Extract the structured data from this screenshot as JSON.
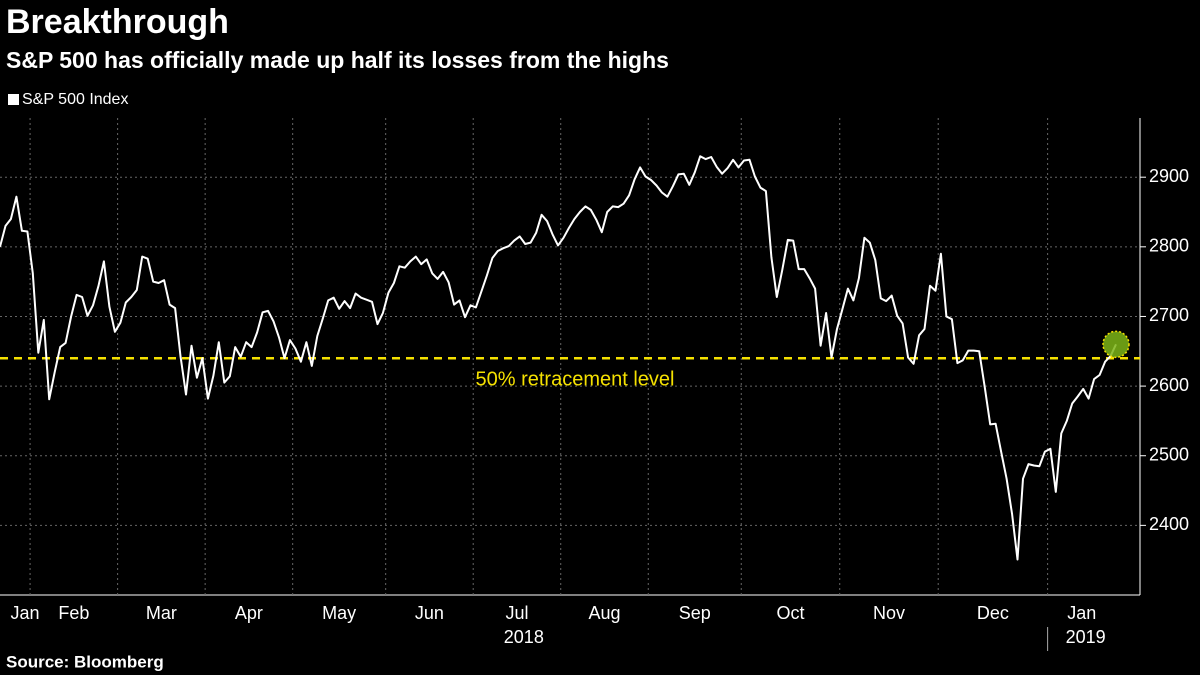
{
  "chart_data": {
    "type": "line",
    "title": "Breakthrough",
    "subtitle": "S&P 500 has officially made up half its losses from the highs",
    "source": "Source: Bloomberg",
    "categories": [
      "Jan",
      "Feb",
      "Mar",
      "Apr",
      "May",
      "Jun",
      "Jul",
      "Aug",
      "Sep",
      "Oct",
      "Nov",
      "Dec",
      "Jan"
    ],
    "years": [
      "2018",
      "2019"
    ],
    "series": [
      {
        "name": "S&P 500 Index",
        "color": "#ffffff",
        "values": [
          [
            2800,
            2830,
            2840,
            2872,
            2823,
            2822
          ],
          [
            2762,
            2648,
            2695,
            2581,
            2620,
            2656,
            2662,
            2700,
            2731,
            2728,
            2701,
            2716,
            2744,
            2779,
            2714,
            2678
          ],
          [
            2691,
            2720,
            2728,
            2738,
            2786,
            2783,
            2750,
            2748,
            2752,
            2717,
            2712,
            2643,
            2588,
            2658,
            2612,
            2640
          ],
          [
            2582,
            2615,
            2663,
            2605,
            2614,
            2656,
            2642,
            2663,
            2656,
            2677,
            2706,
            2708,
            2693,
            2670,
            2640,
            2666
          ],
          [
            2654,
            2635,
            2663,
            2629,
            2672,
            2697,
            2723,
            2727,
            2711,
            2722,
            2712,
            2733,
            2727,
            2724,
            2721,
            2689,
            2705
          ],
          [
            2734,
            2748,
            2772,
            2770,
            2779,
            2786,
            2775,
            2782,
            2762,
            2754,
            2764,
            2749,
            2717,
            2723,
            2699,
            2716
          ],
          [
            2713,
            2736,
            2759,
            2784,
            2794,
            2798,
            2801,
            2809,
            2815,
            2804,
            2806,
            2820,
            2846,
            2837,
            2818,
            2802
          ],
          [
            2813,
            2827,
            2840,
            2850,
            2858,
            2853,
            2839,
            2821,
            2850,
            2858,
            2857,
            2862,
            2874,
            2897,
            2914,
            2901
          ],
          [
            2896,
            2888,
            2878,
            2872,
            2887,
            2904,
            2905,
            2889,
            2907,
            2930,
            2926,
            2929,
            2915,
            2905,
            2913,
            2925,
            2914
          ],
          [
            2924,
            2925,
            2901,
            2885,
            2880,
            2785,
            2728,
            2767,
            2810,
            2809,
            2768,
            2768,
            2755,
            2740,
            2658,
            2705,
            2641,
            2682
          ],
          [
            2711,
            2740,
            2723,
            2755,
            2813,
            2806,
            2781,
            2726,
            2722,
            2730,
            2701,
            2690,
            2641,
            2632,
            2673,
            2682,
            2744,
            2737
          ],
          [
            2790,
            2700,
            2696,
            2633,
            2637,
            2651,
            2651,
            2650,
            2599,
            2545,
            2546,
            2506,
            2467,
            2416,
            2351,
            2467,
            2488,
            2486,
            2485,
            2506
          ],
          [
            2510,
            2448,
            2532,
            2550,
            2575,
            2585,
            2596,
            2582,
            2610,
            2616,
            2635,
            2643,
            2660
          ]
        ]
      }
    ],
    "reference": {
      "value": 2640,
      "label": "50% retracement level",
      "color": "#f5e100"
    },
    "highlight_color": "#7cb518",
    "ylim": [
      2300,
      2985
    ],
    "yticks": [
      2400,
      2500,
      2600,
      2700,
      2800,
      2900
    ],
    "grid": true
  }
}
